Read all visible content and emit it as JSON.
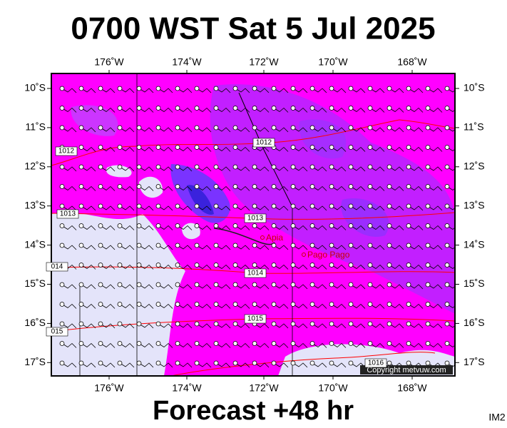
{
  "header": {
    "title": "0700 WST Sat 5 Jul 2025"
  },
  "map": {
    "lon_labels": [
      "176˚W",
      "174˚W",
      "172˚W",
      "170˚W",
      "168˚W"
    ],
    "lat_labels": [
      "10˚S",
      "11˚S",
      "12˚S",
      "13˚S",
      "14˚S",
      "15˚S",
      "16˚S",
      "17˚S"
    ],
    "isobar_labels": [
      "1012",
      "1012",
      "1013",
      "1013",
      "014",
      "1014",
      "015",
      "1015",
      "1016"
    ],
    "places": [
      "Apia",
      "Pago Pago"
    ],
    "copyright": "Copyright metvuw.com"
  },
  "footer": {
    "forecast": "Forecast +48 hr",
    "code": "IM2"
  }
}
